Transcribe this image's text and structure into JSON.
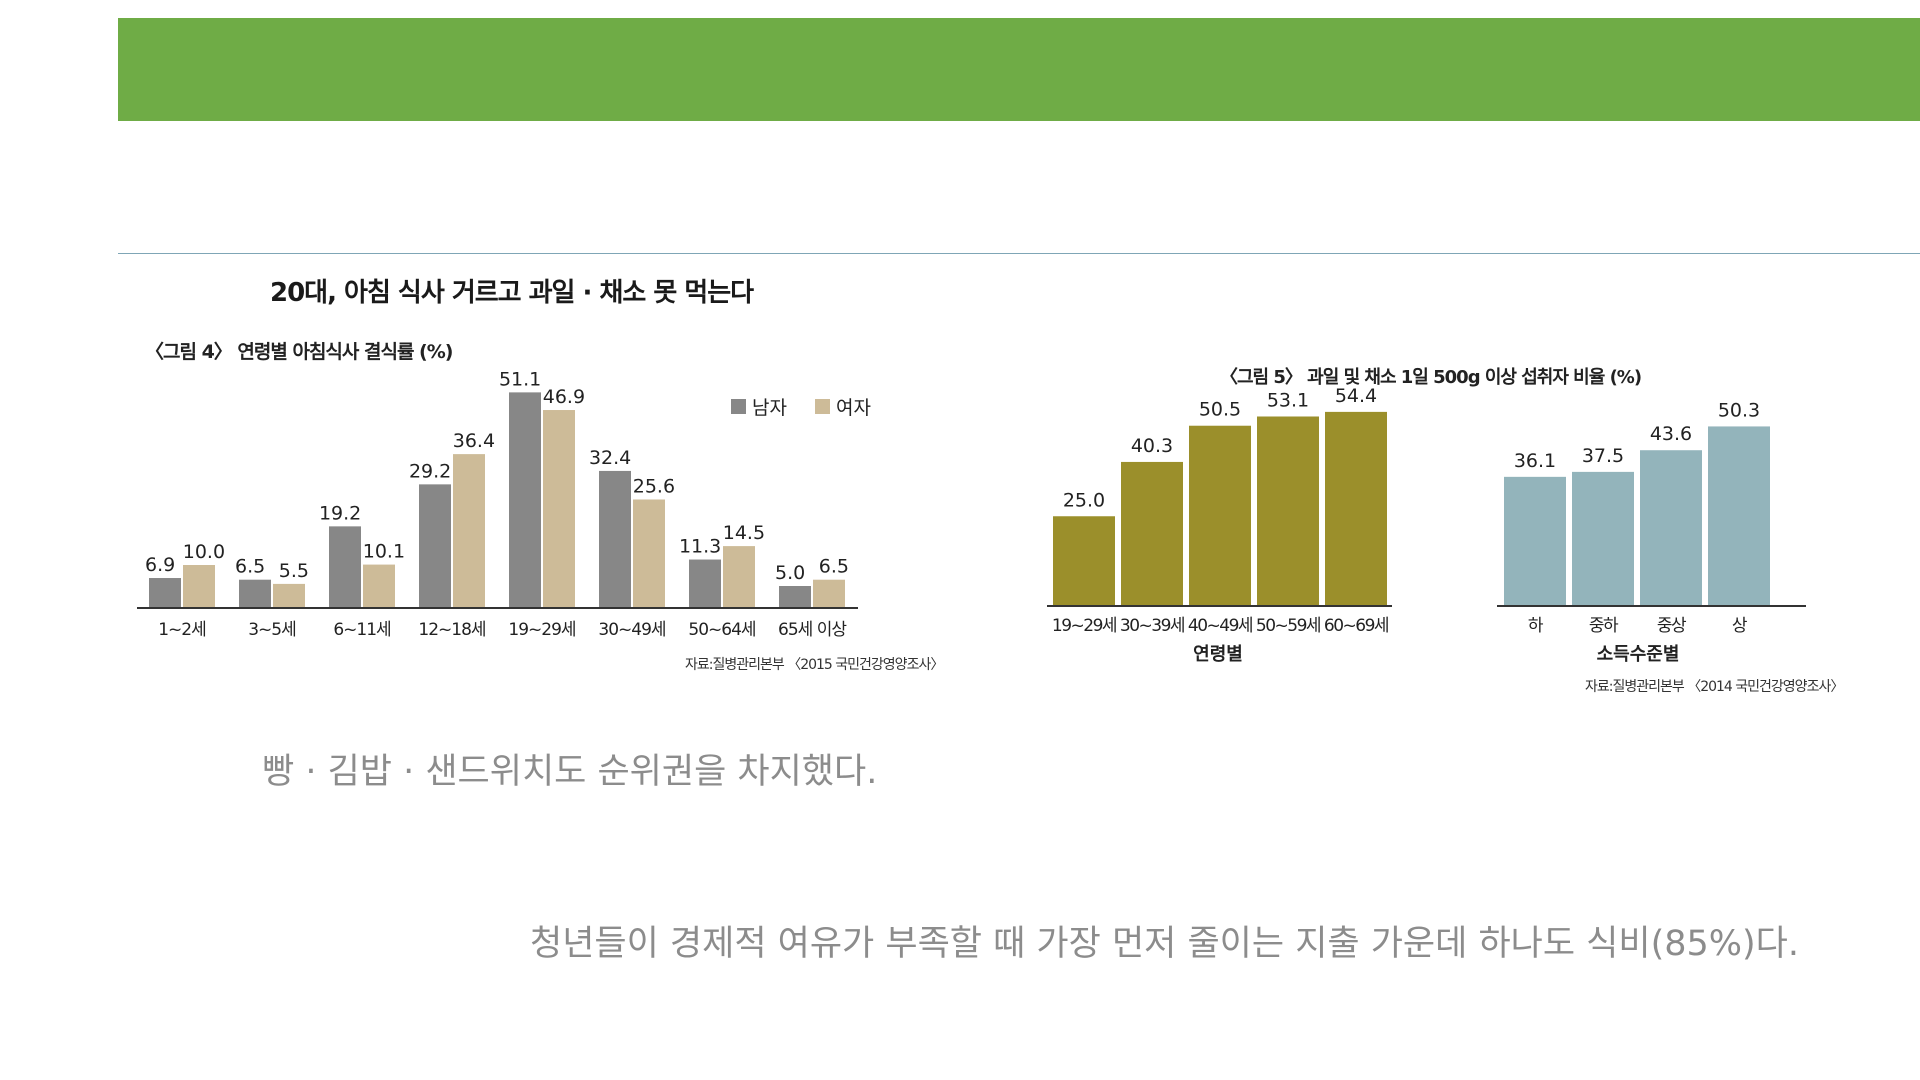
{
  "headline": "20대, 아침 식사 거르고 과일 · 채소 못 먹는다",
  "captions": {
    "first": "빵 · 김밥 · 샌드위치도 순위권을 차지했다.",
    "second": "청년들이 경제적 여유가 부족할 때 가장 먼저 줄이는 지출 가운데 하나도 식비(85%)다."
  },
  "colors": {
    "banner": "#6fac46",
    "male": "#878787",
    "female": "#cdbb98",
    "olive": "#9b8f2b",
    "teal": "#93b4bb"
  },
  "chart_data": [
    {
      "type": "bar",
      "title": "〈그림 4〉 연령별 아침식사 결식률 (%)",
      "categories": [
        "1~2세",
        "3~5세",
        "6~11세",
        "12~18세",
        "19~29세",
        "30~49세",
        "50~64세",
        "65세 이상"
      ],
      "series": [
        {
          "name": "남자",
          "color": "#878787",
          "values": [
            6.9,
            6.5,
            19.2,
            29.2,
            51.1,
            32.4,
            11.3,
            5.0
          ]
        },
        {
          "name": "여자",
          "color": "#cdbb98",
          "values": [
            10.0,
            5.5,
            10.1,
            36.4,
            46.9,
            25.6,
            14.5,
            6.5
          ]
        }
      ],
      "value_labels": {
        "남자": [
          "6.9",
          "6.5",
          "19.2",
          "29.2",
          "51.1",
          "32.4",
          "11.3",
          "5.0"
        ],
        "여자": [
          "10.0",
          "5.5",
          "10.1",
          "36.4",
          "46.9",
          "25.6",
          "14.5",
          "6.5"
        ]
      },
      "ylim": [
        0,
        55
      ],
      "legend": "top-right",
      "source": "자료:질병관리본부 〈2015 국민건강영양조사〉"
    },
    {
      "type": "bar",
      "title": "〈그림 5〉 과일 및 채소 1일 500g 이상 섭취자 비율 (%)",
      "groups": [
        {
          "label": "연령별",
          "color": "#9b8f2b",
          "categories": [
            "19~29세",
            "30~39세",
            "40~49세",
            "50~59세",
            "60~69세"
          ],
          "values": [
            25.0,
            40.3,
            50.5,
            53.1,
            54.4
          ],
          "value_labels": [
            "25.0",
            "40.3",
            "50.5",
            "53.1",
            "54.4"
          ]
        },
        {
          "label": "소득수준별",
          "color": "#93b4bb",
          "categories": [
            "하",
            "중하",
            "중상",
            "상"
          ],
          "values": [
            36.1,
            37.5,
            43.6,
            50.3
          ],
          "value_labels": [
            "36.1",
            "37.5",
            "43.6",
            "50.3"
          ]
        }
      ],
      "ylim": [
        0,
        55
      ],
      "source": "자료:질병관리본부 〈2014 국민건강영양조사〉"
    }
  ]
}
